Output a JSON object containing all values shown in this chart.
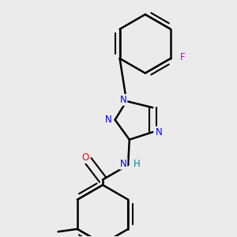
{
  "background_color": "#ebebeb",
  "bond_color": "#000000",
  "bond_width": 1.8,
  "atom_colors": {
    "N": "#0000ff",
    "O": "#ff0000",
    "F": "#cc00cc",
    "H": "#008888",
    "C": "#000000"
  },
  "font_size_atom": 8.5
}
